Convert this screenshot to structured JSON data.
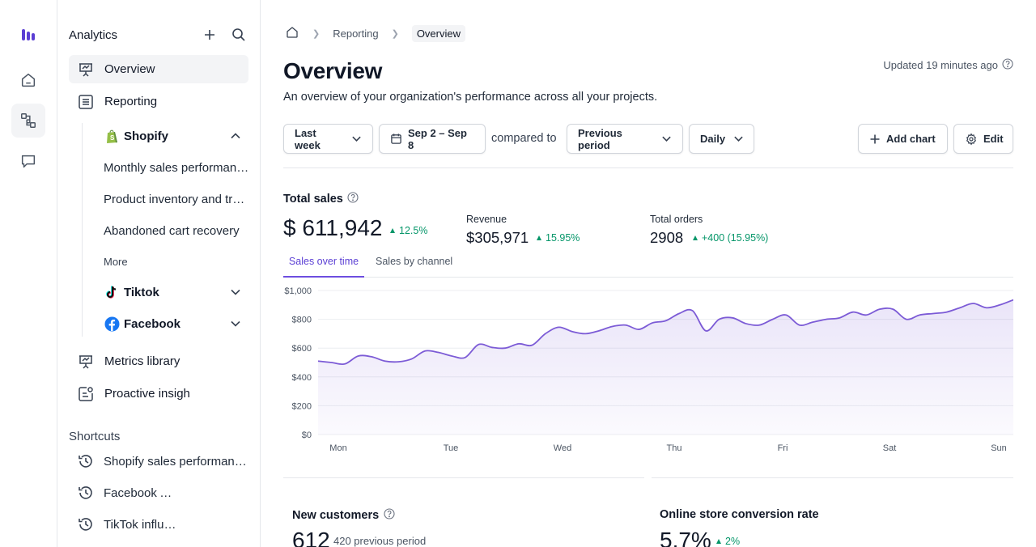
{
  "sidebar": {
    "title": "Analytics",
    "nav": {
      "overview": "Overview",
      "reporting": "Reporting",
      "metrics_library": "Metrics library",
      "proactive_insights": "Proactive insigh"
    },
    "groups": {
      "shopify": "Shopify",
      "tiktok": "Tiktok",
      "facebook": "Facebook"
    },
    "shopify_reports": [
      "Monthly sales performance",
      "Product inventory and trends",
      "Abandoned cart recovery"
    ],
    "more": "More",
    "shortcuts_label": "Shortcuts",
    "shortcuts": [
      "Shopify sales performance",
      "Facebook Ads",
      "TikTok influencers"
    ]
  },
  "breadcrumb": {
    "parent": "Reporting",
    "current": "Overview"
  },
  "page": {
    "title": "Overview",
    "description": "An overview of your organization's performance across all your projects.",
    "updated": "Updated 19 minutes ago"
  },
  "toolbar": {
    "range": "Last week",
    "dates": "Sep 2 – Sep 8",
    "compared_to": "compared to",
    "comparison": "Previous period",
    "granularity": "Daily",
    "add_chart": "Add chart",
    "edit": "Edit"
  },
  "total_sales": {
    "title": "Total sales",
    "value": "$ 611,942",
    "delta": "12.5%",
    "revenue_label": "Revenue",
    "revenue_value": "$305,971",
    "revenue_delta": "15.95%",
    "orders_label": "Total orders",
    "orders_value": "2908",
    "orders_delta": "+400 (15.95%)"
  },
  "tabs": [
    "Sales over time",
    "Sales by channel"
  ],
  "chart_data": {
    "type": "area",
    "x_labels": [
      "Mon",
      "Tue",
      "Wed",
      "Thu",
      "Fri",
      "Sat",
      "Sun"
    ],
    "y_ticks": [
      "$0",
      "$200",
      "$400",
      "$600",
      "$800",
      "$1,000"
    ],
    "ylim": [
      0,
      1000
    ],
    "values": [
      510,
      500,
      490,
      545,
      540,
      510,
      505,
      525,
      580,
      570,
      545,
      535,
      625,
      605,
      600,
      630,
      620,
      700,
      745,
      715,
      700,
      720,
      750,
      760,
      730,
      775,
      790,
      840,
      860,
      720,
      800,
      810,
      770,
      760,
      800,
      830,
      760,
      780,
      800,
      810,
      850,
      830,
      870,
      870,
      800,
      830,
      840,
      850,
      880,
      910,
      880,
      900,
      935
    ],
    "color": "#7c5bd6"
  },
  "cards": {
    "new_customers_title": "New customers",
    "new_customers_value": "612",
    "new_customers_prev": "420 previous period",
    "conversion_title": "Online store conversion rate",
    "conversion_value": "5.7%",
    "conversion_delta": "2%"
  }
}
